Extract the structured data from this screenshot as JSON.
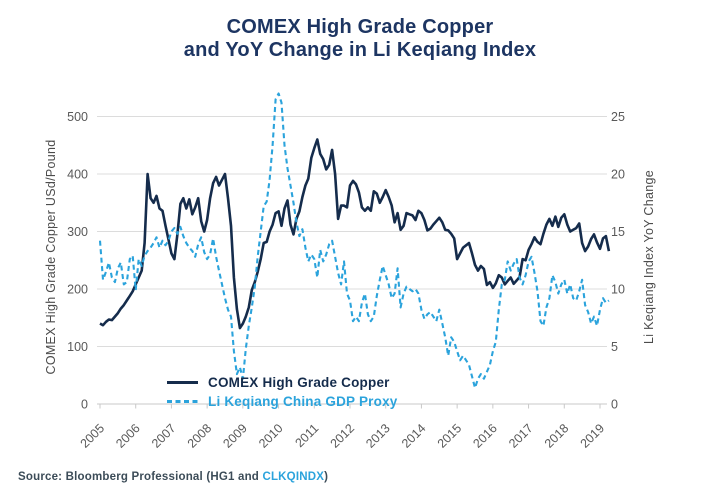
{
  "title": {
    "line1": "COMEX High Grade Copper",
    "line2": "and YoY Change in Li Keqiang Index"
  },
  "source": {
    "prefix": "Source: Bloomberg Professional (HG1 and ",
    "link": "CLKQINDX",
    "suffix": ")"
  },
  "colors": {
    "title_navy": "#1D3562",
    "copper_line": "#152C4C",
    "keqiang_blue": "#2BA3DC",
    "grid": "#DCDCDC",
    "axis_line": "#C8C8C8",
    "tick_label": "#595959",
    "axis_title": "#4C4C4C",
    "source_text": "#3C4C58"
  },
  "chart_data": {
    "type": "line",
    "title": "COMEX High Grade Copper and YoY Change in Li Keqiang Index",
    "grid": "horizontal",
    "legend_position": "inside-bottom-left",
    "x_start_year": 2005,
    "months_per_point": 1,
    "x_tick_labels": [
      "2005",
      "2006",
      "2007",
      "2008",
      "2009",
      "2010",
      "2011",
      "2012",
      "2013",
      "2014",
      "2015",
      "2016",
      "2017",
      "2018",
      "2019"
    ],
    "left_axis": {
      "label": "COMEX High Grade Copper USd/Pound",
      "ticks": [
        0,
        100,
        200,
        300,
        400,
        500
      ],
      "range": [
        0,
        500
      ]
    },
    "right_axis": {
      "label": "Li Keqiang Index YoY Change",
      "ticks": [
        0,
        5,
        10,
        15,
        20,
        25
      ],
      "range": [
        0,
        25
      ]
    },
    "series": [
      {
        "name": "COMEX High Grade Copper",
        "axis": "left",
        "style": "solid",
        "color": "#152C4C",
        "values": [
          140,
          137,
          143,
          147,
          146,
          152,
          158,
          166,
          172,
          180,
          188,
          196,
          208,
          220,
          232,
          280,
          400,
          358,
          350,
          362,
          340,
          336,
          310,
          286,
          262,
          252,
          295,
          348,
          358,
          340,
          356,
          330,
          342,
          358,
          318,
          300,
          320,
          358,
          384,
          395,
          380,
          390,
          400,
          358,
          310,
          220,
          165,
          132,
          140,
          152,
          168,
          198,
          212,
          230,
          252,
          280,
          282,
          300,
          312,
          332,
          335,
          310,
          340,
          354,
          312,
          295,
          322,
          335,
          360,
          380,
          392,
          428,
          445,
          460,
          435,
          426,
          408,
          416,
          442,
          400,
          322,
          345,
          345,
          342,
          380,
          388,
          382,
          368,
          342,
          336,
          342,
          336,
          370,
          366,
          350,
          360,
          372,
          360,
          345,
          316,
          332,
          303,
          310,
          332,
          330,
          328,
          320,
          336,
          332,
          320,
          302,
          305,
          312,
          318,
          324,
          316,
          303,
          302,
          296,
          288,
          252,
          262,
          272,
          276,
          280,
          262,
          242,
          232,
          240,
          235,
          207,
          212,
          202,
          210,
          224,
          220,
          208,
          214,
          220,
          209,
          215,
          221,
          252,
          250,
          268,
          278,
          290,
          282,
          278,
          296,
          312,
          322,
          310,
          326,
          308,
          324,
          330,
          312,
          300,
          303,
          306,
          314,
          280,
          266,
          274,
          287,
          295,
          281,
          270,
          288,
          292,
          266
        ]
      },
      {
        "name": "Li Keqiang China GDP Proxy",
        "axis": "right",
        "style": "dashed",
        "color": "#2BA3DC",
        "values": [
          14.2,
          10.8,
          11.5,
          12.3,
          11.0,
          10.6,
          11.8,
          12.3,
          10.4,
          10.6,
          12.6,
          12.9,
          9.9,
          12.6,
          12.0,
          12.9,
          13.3,
          13.6,
          14.0,
          14.5,
          13.6,
          14.2,
          13.8,
          14.2,
          15.0,
          15.3,
          14.8,
          15.4,
          14.6,
          14.0,
          13.6,
          13.3,
          12.8,
          13.9,
          14.5,
          13.2,
          12.6,
          13.0,
          14.4,
          12.8,
          11.6,
          10.4,
          9.2,
          8.2,
          7.6,
          4.6,
          2.6,
          3.2,
          2.2,
          4.8,
          6.8,
          8.4,
          10.2,
          12.8,
          15.0,
          17.2,
          17.6,
          19.5,
          22.5,
          26.5,
          27.0,
          26.2,
          22.5,
          20.5,
          19.0,
          17.5,
          15.8,
          14.6,
          15.2,
          13.6,
          12.4,
          13.0,
          12.6,
          11.0,
          13.4,
          12.4,
          13.0,
          13.9,
          14.2,
          12.8,
          11.4,
          10.4,
          12.4,
          9.6,
          9.0,
          7.2,
          7.6,
          7.2,
          8.8,
          9.6,
          7.8,
          7.2,
          7.6,
          9.4,
          10.8,
          12.0,
          11.2,
          10.4,
          9.2,
          9.6,
          11.8,
          8.4,
          9.6,
          10.2,
          10.0,
          9.8,
          10.0,
          9.6,
          8.2,
          7.4,
          7.8,
          8.0,
          7.6,
          7.2,
          8.2,
          7.0,
          5.8,
          4.2,
          5.8,
          5.4,
          4.6,
          3.8,
          4.2,
          3.8,
          3.4,
          2.4,
          1.4,
          2.2,
          2.6,
          2.2,
          2.8,
          3.4,
          4.6,
          5.4,
          8.2,
          10.4,
          10.8,
          12.4,
          11.6,
          12.2,
          12.6,
          11.0,
          10.4,
          11.2,
          12.4,
          12.8,
          11.4,
          9.8,
          7.2,
          6.8,
          8.4,
          9.2,
          11.2,
          10.6,
          9.6,
          10.4,
          10.8,
          9.6,
          10.4,
          9.2,
          9.0,
          9.8,
          10.8,
          8.6,
          8.0,
          7.0,
          7.6,
          6.8,
          8.2,
          9.2,
          8.8,
          9.0
        ]
      }
    ]
  }
}
